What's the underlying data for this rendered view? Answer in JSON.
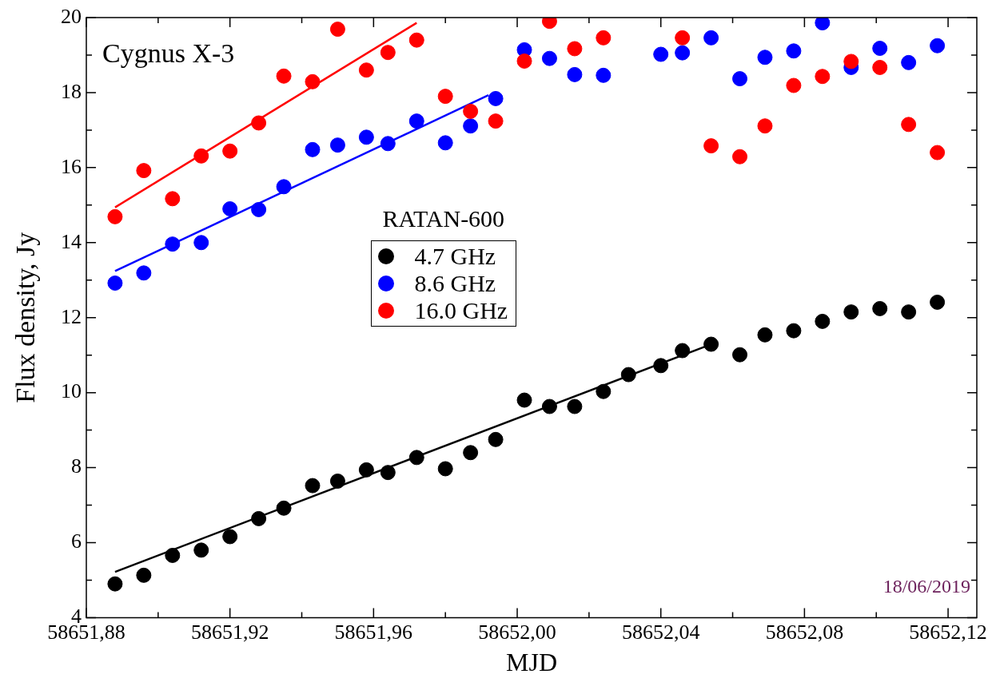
{
  "chart_data": {
    "type": "scatter",
    "xlabel": "MJD",
    "ylabel": "Flux density, Jy",
    "legend_title": "RATAN-600",
    "legend": "center",
    "marker": "circle",
    "annotations": [
      "Cygnus X-3",
      "18/06/2019"
    ],
    "x": [
      58651.888,
      58651.896,
      58651.904,
      58651.912,
      58651.92,
      58651.928,
      58651.935,
      58651.943,
      58651.95,
      58651.958,
      58651.964,
      58651.972,
      58651.98,
      58651.987,
      58651.994,
      58652.002,
      58652.009,
      58652.016,
      58652.024,
      58652.031,
      58652.04,
      58652.046,
      58652.054,
      58652.062,
      58652.069,
      58652.077,
      58652.085,
      58652.093,
      58652.101,
      58652.109,
      58652.117
    ],
    "xlim": [
      58651.88,
      58652.128
    ],
    "xticks": [
      {
        "value": 58651.88,
        "label": "58651,88"
      },
      {
        "value": 58651.9,
        "label": null
      },
      {
        "value": 58651.92,
        "label": "58651,92"
      },
      {
        "value": 58651.94,
        "label": null
      },
      {
        "value": 58651.96,
        "label": "58651,96"
      },
      {
        "value": 58651.98,
        "label": null
      },
      {
        "value": 58652.0,
        "label": "58652,00"
      },
      {
        "value": 58652.02,
        "label": null
      },
      {
        "value": 58652.04,
        "label": "58652,04"
      },
      {
        "value": 58652.06,
        "label": null
      },
      {
        "value": 58652.08,
        "label": "58652,08"
      },
      {
        "value": 58652.1,
        "label": null
      },
      {
        "value": 58652.12,
        "label": "58652,12"
      }
    ],
    "ylim": [
      4,
      20
    ],
    "yticks": [
      4,
      {
        "value": 5,
        "label": null
      },
      6,
      {
        "value": 7,
        "label": null
      },
      8,
      {
        "value": 9,
        "label": null
      },
      10,
      {
        "value": 11,
        "label": null
      },
      12,
      {
        "value": 13,
        "label": null
      },
      14,
      {
        "value": 15,
        "label": null
      },
      16,
      {
        "value": 17,
        "label": null
      },
      18,
      {
        "value": 19,
        "label": null
      },
      20
    ],
    "series": [
      {
        "name": "4.7 GHz",
        "color": "#000000",
        "values": [
          4.9,
          5.13,
          5.66,
          5.8,
          6.16,
          6.64,
          6.92,
          7.52,
          7.64,
          7.94,
          7.87,
          8.27,
          7.97,
          8.4,
          8.75,
          9.8,
          9.63,
          9.63,
          10.03,
          10.48,
          10.72,
          11.12,
          11.29,
          11.01,
          11.54,
          11.65,
          11.9,
          12.15,
          12.24,
          12.15,
          12.41
        ]
      },
      {
        "name": "8.6 GHz",
        "color": "#0000ff",
        "values": [
          12.92,
          13.19,
          13.96,
          14.0,
          14.9,
          14.88,
          15.49,
          16.48,
          16.6,
          16.81,
          16.64,
          17.24,
          16.66,
          17.11,
          17.84,
          19.14,
          18.91,
          18.48,
          18.46,
          null,
          19.02,
          19.06,
          19.46,
          18.37,
          18.94,
          19.11,
          19.86,
          18.67,
          19.18,
          18.8,
          19.25
        ]
      },
      {
        "name": "16.0 GHz",
        "color": "#ff0000",
        "values": [
          14.69,
          15.92,
          15.17,
          16.31,
          16.44,
          17.19,
          18.44,
          18.29,
          19.69,
          18.6,
          19.07,
          19.4,
          17.9,
          17.5,
          17.24,
          18.84,
          19.9,
          19.17,
          19.46,
          null,
          null,
          19.46,
          16.58,
          16.29,
          17.11,
          18.19,
          18.43,
          18.83,
          18.67,
          17.15,
          16.4
        ]
      },
      {
        "type": "line",
        "marker": "none",
        "color": "#000000",
        "x": [
          58651.888,
          58652.054
        ],
        "values": [
          5.22,
          11.29
        ]
      },
      {
        "type": "line",
        "marker": "none",
        "color": "#0000ff",
        "x": [
          58651.888,
          58651.992
        ],
        "values": [
          13.24,
          17.93
        ]
      },
      {
        "type": "line",
        "marker": "none",
        "color": "#ff0000",
        "x": [
          58651.888,
          58651.972
        ],
        "values": [
          14.94,
          19.86
        ]
      }
    ]
  }
}
